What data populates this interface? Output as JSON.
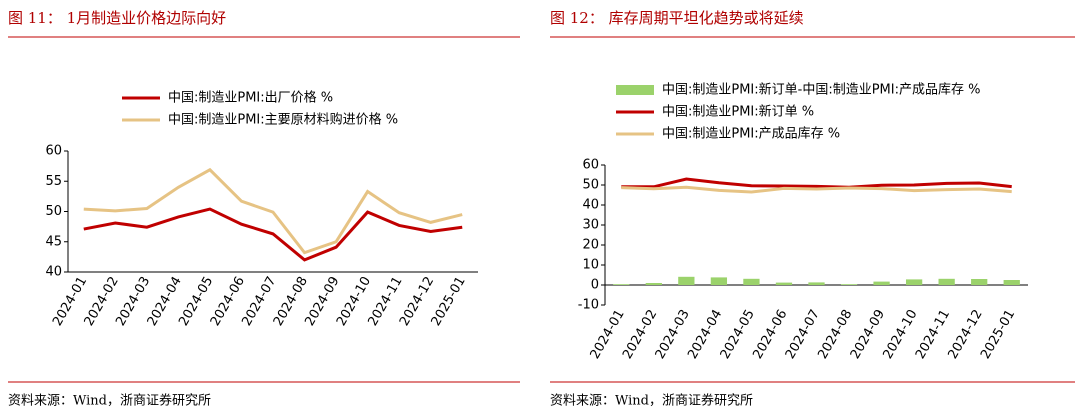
{
  "chart_data": [
    {
      "type": "line",
      "title": "图 11：  1月制造业价格边际向好",
      "source": "资料来源：Wind，浙商证券研究所",
      "categories": [
        "2024-01",
        "2024-02",
        "2024-03",
        "2024-04",
        "2024-05",
        "2024-06",
        "2024-07",
        "2024-08",
        "2024-09",
        "2024-10",
        "2024-11",
        "2024-12",
        "2025-01"
      ],
      "ylim": [
        40,
        60
      ],
      "yticks": [
        40,
        45,
        50,
        55,
        60
      ],
      "series": [
        {
          "name": "中国:制造业PMI:出厂价格 %",
          "color": "#c00000",
          "values": [
            47.1,
            48.1,
            47.4,
            49.1,
            50.4,
            47.9,
            46.3,
            42.0,
            44.1,
            49.9,
            47.7,
            46.7,
            47.4
          ]
        },
        {
          "name": "中国:制造业PMI:主要原材料购进价格 %",
          "color": "#e6c384",
          "values": [
            50.4,
            50.1,
            50.5,
            54.0,
            56.9,
            51.7,
            49.9,
            43.2,
            45.0,
            53.3,
            49.8,
            48.2,
            49.5
          ]
        }
      ]
    },
    {
      "type": "combo",
      "title": "图 12：  库存周期平坦化趋势或将延续",
      "source": "资料来源：Wind，浙商证券研究所",
      "categories": [
        "2024-01",
        "2024-02",
        "2024-03",
        "2024-04",
        "2024-05",
        "2024-06",
        "2024-07",
        "2024-08",
        "2024-09",
        "2024-10",
        "2024-11",
        "2024-12",
        "2025-01"
      ],
      "ylim": [
        -10,
        60
      ],
      "yticks": [
        -10,
        0,
        10,
        20,
        30,
        40,
        50,
        60
      ],
      "series": [
        {
          "name": "中国:制造业PMI:新订单-中国:制造业PMI:产成品库存 %",
          "type": "bar",
          "color": "#9bd26b",
          "values": [
            0.4,
            1.0,
            4.1,
            3.8,
            3.1,
            1.2,
            1.3,
            0.4,
            1.7,
            2.8,
            3.1,
            3.0,
            2.5
          ]
        },
        {
          "name": "中国:制造业PMI:新订单 %",
          "type": "line",
          "color": "#c00000",
          "values": [
            49.1,
            49.1,
            53.0,
            51.1,
            49.6,
            49.5,
            49.3,
            48.9,
            49.9,
            50.0,
            50.8,
            51.0,
            49.2
          ]
        },
        {
          "name": "中国:制造业PMI:产成品库存 %",
          "type": "line",
          "color": "#e6c384",
          "values": [
            48.7,
            48.1,
            48.9,
            47.3,
            46.5,
            48.3,
            48.0,
            48.5,
            48.2,
            47.2,
            47.7,
            48.0,
            46.7
          ]
        }
      ]
    }
  ]
}
